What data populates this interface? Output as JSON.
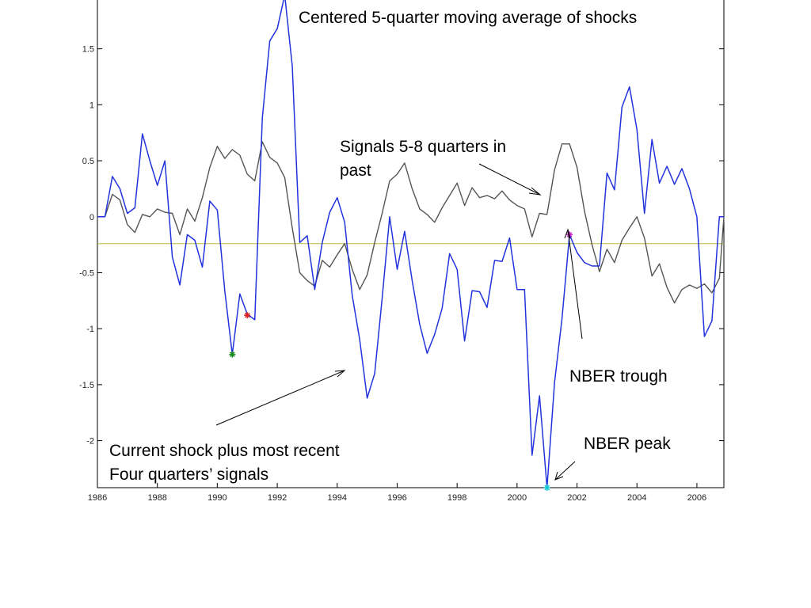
{
  "chart_data": {
    "type": "line",
    "xlim": [
      1986,
      2006.9
    ],
    "ylim": [
      -2.42,
      1.95
    ],
    "x_ticks": [
      1986,
      1988,
      1990,
      1992,
      1994,
      1996,
      1998,
      2000,
      2002,
      2004,
      2006
    ],
    "x_tick_labels": [
      "1986",
      "1988",
      "1990",
      "1992",
      "1994",
      "1996",
      "1998",
      "2000",
      "2002",
      "2004",
      "2006"
    ],
    "y_ticks": [
      1.5,
      1,
      0.5,
      0,
      -0.5,
      -1,
      -1.5,
      -2
    ],
    "y_tick_labels": [
      "1.5",
      "1",
      "0.5",
      "0",
      "-0.5",
      "-1",
      "-1.5",
      "-2"
    ],
    "grid": false,
    "reference_line": {
      "y": -0.24,
      "color": "#b5b83a"
    },
    "series": [
      {
        "color": "#2233dd",
        "x": [
          1986.0,
          1986.25,
          1986.5,
          1986.75,
          1987.0,
          1987.25,
          1987.5,
          1987.75,
          1988.0,
          1988.25,
          1988.5,
          1988.75,
          1989.0,
          1989.25,
          1989.5,
          1989.75,
          1990.0,
          1990.25,
          1990.5,
          1990.75,
          1991.0,
          1991.25,
          1991.5,
          1991.75,
          1992.0,
          1992.25,
          1992.5,
          1992.75,
          1993.0,
          1993.25,
          1993.5,
          1993.75,
          1994.0,
          1994.25,
          1994.5,
          1994.75,
          1995.0,
          1995.25,
          1995.5,
          1995.75,
          1996.0,
          1996.25,
          1996.5,
          1996.75,
          1997.0,
          1997.25,
          1997.5,
          1997.75,
          1998.0,
          1998.25,
          1998.5,
          1998.75,
          1999.0,
          1999.25,
          1999.5,
          1999.75,
          2000.0,
          2000.25,
          2000.5,
          2000.75,
          2001.0,
          2001.25,
          2001.5,
          2001.75,
          2002.0,
          2002.25,
          2002.5,
          2002.75,
          2003.0,
          2003.25,
          2003.5,
          2003.75,
          2004.0,
          2004.25,
          2004.5,
          2004.75,
          2005.0,
          2005.25,
          2005.5,
          2005.75,
          2006.0,
          2006.25,
          2006.5,
          2006.75,
          2006.9
        ],
        "y": [
          0.0,
          0.0,
          0.36,
          0.25,
          0.03,
          0.08,
          0.74,
          0.5,
          0.28,
          0.5,
          -0.36,
          -0.61,
          -0.16,
          -0.21,
          -0.45,
          0.14,
          0.06,
          -0.66,
          -1.23,
          -0.69,
          -0.87,
          -0.92,
          0.88,
          1.57,
          1.68,
          1.98,
          1.35,
          -0.23,
          -0.17,
          -0.65,
          -0.23,
          0.04,
          0.17,
          -0.05,
          -0.7,
          -1.1,
          -1.62,
          -1.4,
          -0.73,
          0.0,
          -0.47,
          -0.13,
          -0.57,
          -0.96,
          -1.22,
          -1.05,
          -0.82,
          -0.33,
          -0.47,
          -1.11,
          -0.66,
          -0.67,
          -0.81,
          -0.39,
          -0.4,
          -0.19,
          -0.65,
          -0.65,
          -2.13,
          -1.6,
          -2.42,
          -1.48,
          -0.91,
          -0.16,
          -0.32,
          -0.41,
          -0.44,
          -0.44,
          0.39,
          0.24,
          0.98,
          1.16,
          0.78,
          0.03,
          0.69,
          0.3,
          0.45,
          0.29,
          0.43,
          0.25,
          0.0,
          -1.07,
          -0.93,
          0.0,
          0.0
        ]
      },
      {
        "color": "#555555",
        "x": [
          1986.0,
          1986.25,
          1986.5,
          1986.75,
          1987.0,
          1987.25,
          1987.5,
          1987.75,
          1988.0,
          1988.25,
          1988.5,
          1988.75,
          1989.0,
          1989.25,
          1989.5,
          1989.75,
          1990.0,
          1990.25,
          1990.5,
          1990.75,
          1991.0,
          1991.25,
          1991.5,
          1991.75,
          1992.0,
          1992.25,
          1992.5,
          1992.75,
          1993.0,
          1993.25,
          1993.5,
          1993.75,
          1994.0,
          1994.25,
          1994.5,
          1994.75,
          1995.0,
          1995.25,
          1995.5,
          1995.75,
          1996.0,
          1996.25,
          1996.5,
          1996.75,
          1997.0,
          1997.25,
          1997.5,
          1997.75,
          1998.0,
          1998.25,
          1998.5,
          1998.75,
          1999.0,
          1999.25,
          1999.5,
          1999.75,
          2000.0,
          2000.25,
          2000.5,
          2000.75,
          2001.0,
          2001.25,
          2001.5,
          2001.75,
          2002.0,
          2002.25,
          2002.5,
          2002.75,
          2003.0,
          2003.25,
          2003.5,
          2003.75,
          2004.0,
          2004.25,
          2004.5,
          2004.75,
          2005.0,
          2005.25,
          2005.5,
          2005.75,
          2006.0,
          2006.25,
          2006.5,
          2006.75,
          2006.9
        ],
        "y": [
          0.0,
          0.0,
          0.2,
          0.15,
          -0.07,
          -0.14,
          0.02,
          0.0,
          0.07,
          0.04,
          0.03,
          -0.16,
          0.07,
          -0.04,
          0.17,
          0.44,
          0.63,
          0.52,
          0.6,
          0.55,
          0.38,
          0.32,
          0.67,
          0.53,
          0.48,
          0.35,
          -0.1,
          -0.5,
          -0.57,
          -0.62,
          -0.39,
          -0.45,
          -0.34,
          -0.24,
          -0.47,
          -0.65,
          -0.52,
          -0.23,
          0.03,
          0.32,
          0.38,
          0.48,
          0.25,
          0.07,
          0.02,
          -0.05,
          0.08,
          0.19,
          0.3,
          0.1,
          0.26,
          0.17,
          0.19,
          0.16,
          0.23,
          0.15,
          0.1,
          0.07,
          -0.18,
          0.03,
          0.02,
          0.42,
          0.65,
          0.65,
          0.44,
          0.05,
          -0.25,
          -0.49,
          -0.29,
          -0.41,
          -0.21,
          -0.1,
          0.0,
          -0.19,
          -0.53,
          -0.42,
          -0.63,
          -0.77,
          -0.65,
          -0.61,
          -0.64,
          -0.6,
          -0.68,
          -0.55,
          0.0
        ]
      }
    ],
    "markers": [
      {
        "x": 1990.5,
        "y": -1.23,
        "color": "#1a8a1a",
        "symbol": "*"
      },
      {
        "x": 1991.0,
        "y": -0.88,
        "color": "#dd2222",
        "symbol": "*"
      },
      {
        "x": 2001.0,
        "y": -2.42,
        "color": "#18c8d8",
        "symbol": "*"
      },
      {
        "x": 2001.75,
        "y": -0.16,
        "color": "#cc22cc",
        "symbol": "*"
      }
    ],
    "annotations": [
      {
        "text": "Centered 5-quarter moving average of shocks"
      },
      {
        "text": "Signals 5-8 quarters in"
      },
      {
        "text": "past"
      },
      {
        "text": "Current shock plus most recent"
      },
      {
        "text": "Four quarters’ signals"
      },
      {
        "text": "NBER trough"
      },
      {
        "text": "NBER peak"
      }
    ]
  }
}
